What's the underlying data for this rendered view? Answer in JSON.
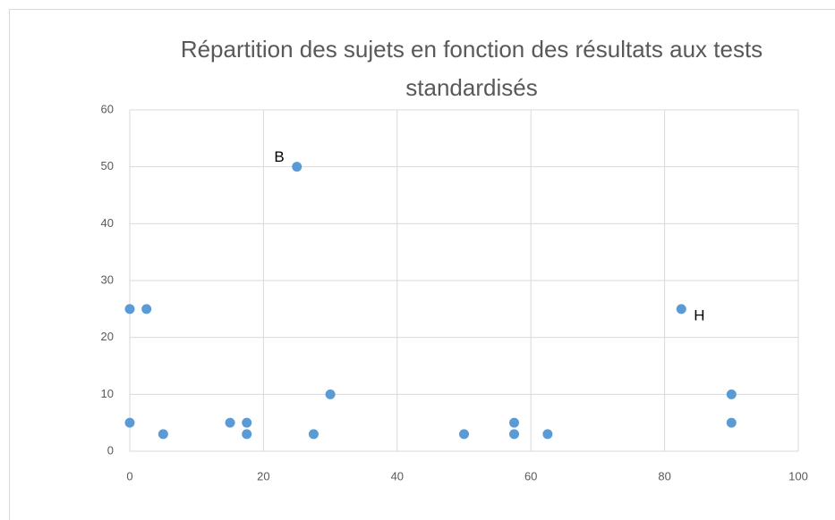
{
  "chart_data": {
    "type": "scatter",
    "title": "Répartition des sujets en fonction des résultats aux tests standardisés",
    "series": [
      {
        "color": "#5b9bd5",
        "x": [
          0,
          2.5,
          0,
          5,
          15,
          17.5,
          17.5,
          25,
          27.5,
          30,
          50,
          57.5,
          57.5,
          62.5,
          82.5,
          90,
          90
        ],
        "values": [
          25,
          25,
          5,
          3,
          5,
          5,
          3,
          50,
          3,
          10,
          3,
          5,
          3,
          3,
          25,
          10,
          5
        ]
      }
    ],
    "annotations": [
      {
        "text": "B",
        "x": 25,
        "y": 50
      },
      {
        "text": "H",
        "x": 82.5,
        "y": 25
      }
    ],
    "xlim": [
      0,
      100
    ],
    "xticks": [
      0,
      20,
      40,
      60,
      80,
      100
    ],
    "ylim": [
      0,
      60
    ],
    "yticks": [
      0,
      10,
      20,
      30,
      40,
      50,
      60
    ],
    "grid": true
  }
}
